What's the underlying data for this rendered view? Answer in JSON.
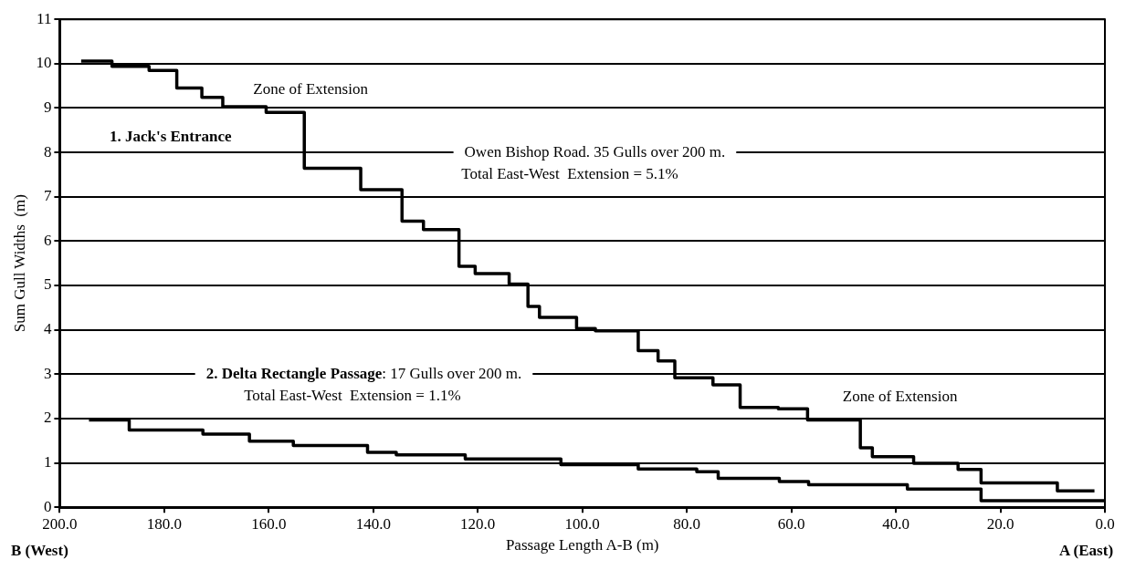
{
  "chart_data": {
    "type": "step",
    "xlabel": "Passage Length A-B (m)",
    "ylabel": "Sum Gull Widths  (m)",
    "xlim": [
      200,
      0
    ],
    "xticks": [
      {
        "value": 200,
        "label": "200.0"
      },
      {
        "value": 180,
        "label": "180.0"
      },
      {
        "value": 160,
        "label": "160.0"
      },
      {
        "value": 140,
        "label": "140.0"
      },
      {
        "value": 120,
        "label": "120.0"
      },
      {
        "value": 100,
        "label": "100.0"
      },
      {
        "value": 80,
        "label": "80.0"
      },
      {
        "value": 60,
        "label": "60.0"
      },
      {
        "value": 40,
        "label": "40.0"
      },
      {
        "value": 20,
        "label": "20.0"
      },
      {
        "value": 0,
        "label": "0.0"
      }
    ],
    "ylim": [
      0,
      11
    ],
    "yticks": [
      0,
      1,
      2,
      3,
      4,
      5,
      6,
      7,
      8,
      9,
      10,
      11
    ],
    "grid": "y",
    "legend": false,
    "marker": "none",
    "line_style": "solid",
    "series": [
      {
        "color": "#000000",
        "x": [
          195.9,
          190.0,
          182.9,
          177.6,
          172.8,
          168.8,
          160.5,
          153.2,
          142.4,
          134.5,
          130.4,
          123.6,
          120.5,
          114.0,
          110.4,
          108.2,
          101.1,
          97.5,
          89.3,
          85.5,
          82.3,
          75.0,
          69.8,
          62.5,
          56.9,
          46.8,
          44.5,
          36.6,
          28.1,
          23.7,
          9.1,
          2.0
        ],
        "values": [
          10.06,
          9.94,
          9.85,
          9.45,
          9.24,
          9.03,
          8.9,
          7.64,
          7.16,
          6.45,
          6.26,
          5.43,
          5.27,
          5.03,
          4.53,
          4.28,
          4.03,
          3.98,
          3.53,
          3.3,
          2.92,
          2.76,
          2.25,
          2.22,
          1.97,
          1.34,
          1.14,
          0.99,
          0.85,
          0.55,
          0.37,
          0.37
        ]
      },
      {
        "color": "#000000",
        "x": [
          194.4,
          186.7,
          172.6,
          163.7,
          155.3,
          141.1,
          135.6,
          122.4,
          104.1,
          89.3,
          78.1,
          74.0,
          62.3,
          56.7,
          37.8,
          23.7,
          0
        ],
        "values": [
          1.97,
          1.74,
          1.65,
          1.49,
          1.39,
          1.24,
          1.18,
          1.09,
          0.96,
          0.86,
          0.8,
          0.65,
          0.58,
          0.51,
          0.41,
          0.15,
          0.15
        ]
      }
    ],
    "annotations": [
      "Zone of Extension",
      "1. Jack's Entrance",
      "Owen Bishop Road. 35 Gulls over 200 m.",
      "Total East-West  Extension = 5.1%",
      "2. Delta Rectangle Passage: 17 Gulls over 200 m.",
      "Total East-West  Extension = 1.1%",
      "Zone of Extension",
      "B (West)",
      "A (East)"
    ]
  }
}
